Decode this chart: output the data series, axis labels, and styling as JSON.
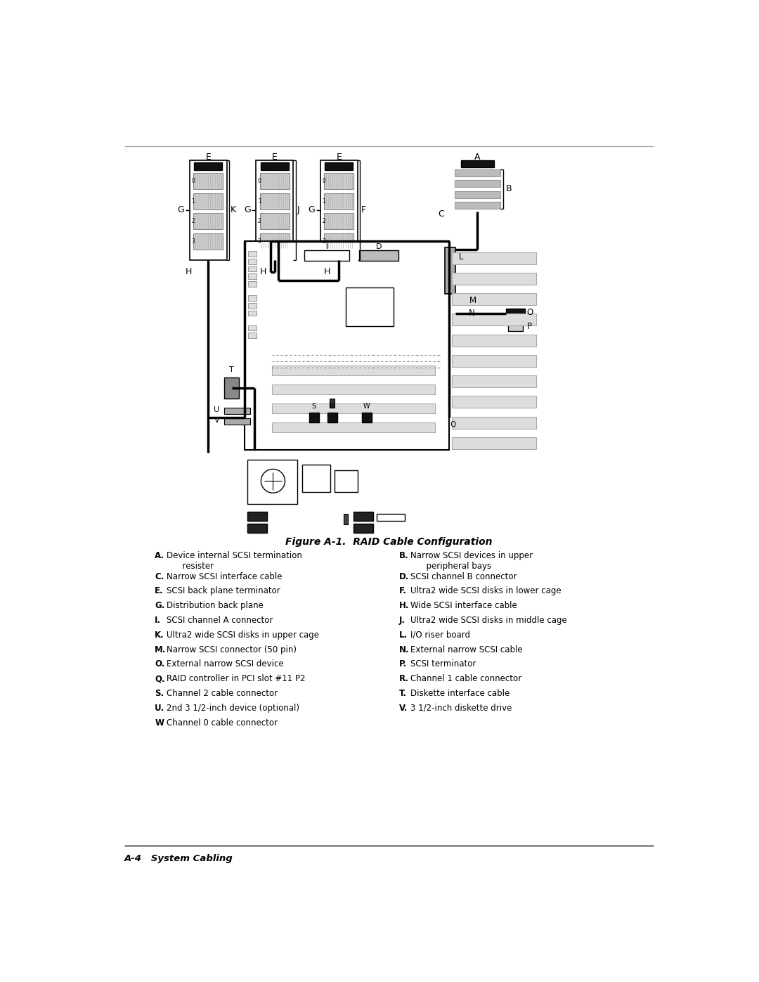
{
  "title": "Figure A-1.  RAID Cable Configuration",
  "footer": "A-4   System Cabling",
  "background_color": "#ffffff",
  "text_color": "#000000",
  "legend_rows": [
    [
      "A.",
      "Device internal SCSI termination\n      resister",
      "B.",
      "Narrow SCSI devices in upper\n      peripheral bays"
    ],
    [
      "C.",
      "Narrow SCSI interface cable",
      "D.",
      "SCSI channel B connector"
    ],
    [
      "E.",
      "SCSI back plane terminator",
      "F.",
      "Ultra2 wide SCSI disks in lower cage"
    ],
    [
      "G.",
      "Distribution back plane",
      "H.",
      "Wide SCSI interface cable"
    ],
    [
      "I.",
      "SCSI channel A connector",
      "J.",
      "Ultra2 wide SCSI disks in middle cage"
    ],
    [
      "K.",
      "Ultra2 wide SCSI disks in upper cage",
      "L.",
      "I/O riser board"
    ],
    [
      "M.",
      "Narrow SCSI connector (50 pin)",
      "N.",
      "External narrow SCSI cable"
    ],
    [
      "O.",
      "External narrow SCSI device",
      "P.",
      "SCSI terminator"
    ],
    [
      "Q.",
      "RAID controller in PCI slot #11 P2",
      "R.",
      "Channel 1 cable connector"
    ],
    [
      "S.",
      "Channel 2 cable connector",
      "T.",
      "Diskette interface cable"
    ],
    [
      "U.",
      "2nd 3 1/2-inch device (optional)",
      "V.",
      "3 1/2-inch diskette drive"
    ],
    [
      "W",
      "Channel 0 cable connector",
      "",
      ""
    ]
  ]
}
